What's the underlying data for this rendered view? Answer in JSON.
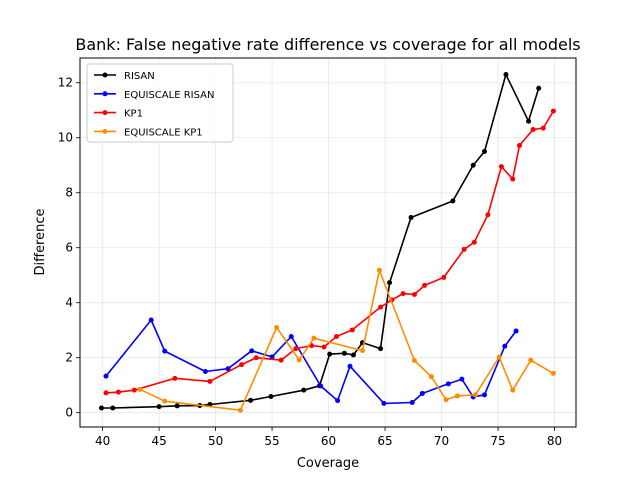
{
  "chart_data": {
    "type": "line",
    "title": "Bank: False negative rate difference vs coverage for all models",
    "xlabel": "Coverage",
    "ylabel": "Difference",
    "xlim": [
      38.0,
      81.9
    ],
    "ylim": [
      -0.52,
      12.9
    ],
    "xticks": [
      40,
      45,
      50,
      55,
      60,
      65,
      70,
      75,
      80
    ],
    "yticks": [
      0,
      2,
      4,
      6,
      8,
      10,
      12
    ],
    "grid": true,
    "legend_position": "top-left",
    "series": [
      {
        "name": "RISAN",
        "color": "#000000",
        "x": [
          39.9,
          40.9,
          45.0,
          46.6,
          48.6,
          49.5,
          53.1,
          54.9,
          57.8,
          59.2,
          60.1,
          61.4,
          62.2,
          63.0,
          64.6,
          65.4,
          67.3,
          71.0,
          72.8,
          73.8,
          75.7,
          77.7,
          78.6
        ],
        "y": [
          0.17,
          0.17,
          0.22,
          0.25,
          0.26,
          0.3,
          0.45,
          0.59,
          0.82,
          0.98,
          2.13,
          2.16,
          2.1,
          2.55,
          2.33,
          4.73,
          7.1,
          7.7,
          9.0,
          9.5,
          12.3,
          10.6,
          11.8
        ]
      },
      {
        "name": "EQUISCALE RISAN",
        "color": "#0000ff",
        "x": [
          40.3,
          44.3,
          45.5,
          49.1,
          51.1,
          53.2,
          55.0,
          56.7,
          59.3,
          60.8,
          61.9,
          64.9,
          67.4,
          68.3,
          70.6,
          71.8,
          72.8,
          73.8,
          75.6,
          76.6
        ],
        "y": [
          1.33,
          3.37,
          2.24,
          1.5,
          1.6,
          2.25,
          2.03,
          2.77,
          0.97,
          0.44,
          1.69,
          0.34,
          0.37,
          0.7,
          1.05,
          1.22,
          0.57,
          0.65,
          2.42,
          2.97
        ]
      },
      {
        "name": "KP1",
        "color": "#ff0000",
        "x": [
          40.3,
          41.4,
          42.8,
          46.4,
          49.5,
          52.3,
          53.6,
          55.8,
          57.1,
          58.5,
          59.6,
          60.7,
          62.1,
          64.6,
          65.6,
          66.6,
          67.6,
          68.5,
          70.2,
          72.0,
          72.9,
          74.1,
          75.3,
          76.3,
          76.9,
          78.1,
          79.0,
          79.9
        ],
        "y": [
          0.72,
          0.75,
          0.82,
          1.25,
          1.14,
          1.75,
          2.0,
          1.91,
          2.33,
          2.44,
          2.39,
          2.77,
          3.01,
          3.84,
          4.1,
          4.33,
          4.3,
          4.63,
          4.92,
          5.94,
          6.2,
          7.2,
          8.95,
          8.5,
          9.72,
          10.3,
          10.35,
          10.97
        ]
      },
      {
        "name": "EQUISCALE KP1",
        "color": "#ff8c00",
        "x": [
          43.3,
          45.5,
          52.2,
          55.4,
          57.4,
          58.7,
          63.0,
          64.5,
          67.6,
          69.1,
          70.4,
          71.4,
          73.0,
          75.1,
          76.3,
          77.9,
          79.9
        ],
        "y": [
          0.85,
          0.42,
          0.09,
          3.1,
          1.92,
          2.71,
          2.26,
          5.18,
          1.9,
          1.31,
          0.47,
          0.61,
          0.65,
          2.02,
          0.82,
          1.91,
          1.43
        ]
      }
    ]
  }
}
